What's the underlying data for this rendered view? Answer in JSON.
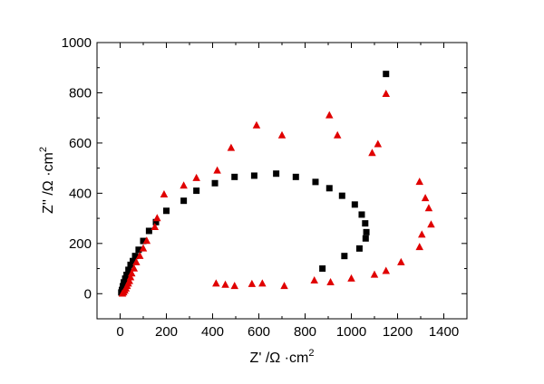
{
  "chart_data": {
    "type": "scatter",
    "title": "",
    "xlabel": {
      "main": "Z' /Ω ·cm",
      "sup": "2"
    },
    "ylabel": {
      "main": "Z'' /Ω ·cm",
      "sup": "2"
    },
    "xlim": [
      -100,
      1500
    ],
    "ylim": [
      -100,
      1000
    ],
    "xticks": [
      0,
      200,
      400,
      600,
      800,
      1000,
      1200,
      1400
    ],
    "yticks": [
      0,
      200,
      400,
      600,
      800,
      1000
    ],
    "grid": false,
    "legend": "none",
    "series": [
      {
        "marker": "square",
        "color": "#000000",
        "points": [
          [
            5,
            5
          ],
          [
            8,
            15
          ],
          [
            12,
            30
          ],
          [
            16,
            45
          ],
          [
            22,
            60
          ],
          [
            28,
            75
          ],
          [
            36,
            95
          ],
          [
            45,
            115
          ],
          [
            55,
            130
          ],
          [
            65,
            150
          ],
          [
            80,
            175
          ],
          [
            100,
            210
          ],
          [
            125,
            250
          ],
          [
            155,
            285
          ],
          [
            200,
            330
          ],
          [
            275,
            370
          ],
          [
            330,
            410
          ],
          [
            410,
            440
          ],
          [
            495,
            465
          ],
          [
            580,
            470
          ],
          [
            675,
            478
          ],
          [
            760,
            465
          ],
          [
            845,
            445
          ],
          [
            905,
            420
          ],
          [
            960,
            390
          ],
          [
            1015,
            355
          ],
          [
            1045,
            315
          ],
          [
            1060,
            280
          ],
          [
            1065,
            245
          ],
          [
            1062,
            220
          ],
          [
            1035,
            180
          ],
          [
            970,
            150
          ],
          [
            875,
            100
          ],
          [
            1150,
            875
          ]
        ]
      },
      {
        "marker": "triangle",
        "color": "#e00000",
        "points": [
          [
            10,
            0
          ],
          [
            15,
            5
          ],
          [
            20,
            12
          ],
          [
            25,
            20
          ],
          [
            30,
            30
          ],
          [
            35,
            40
          ],
          [
            40,
            50
          ],
          [
            45,
            65
          ],
          [
            50,
            80
          ],
          [
            60,
            100
          ],
          [
            70,
            125
          ],
          [
            85,
            150
          ],
          [
            100,
            180
          ],
          [
            115,
            210
          ],
          [
            150,
            265
          ],
          [
            160,
            300
          ],
          [
            190,
            395
          ],
          [
            275,
            430
          ],
          [
            330,
            460
          ],
          [
            420,
            490
          ],
          [
            480,
            580
          ],
          [
            590,
            670
          ],
          [
            700,
            630
          ],
          [
            905,
            710
          ],
          [
            940,
            630
          ],
          [
            1090,
            560
          ],
          [
            1115,
            595
          ],
          [
            1150,
            795
          ],
          [
            415,
            40
          ],
          [
            455,
            35
          ],
          [
            495,
            30
          ],
          [
            570,
            38
          ],
          [
            615,
            40
          ],
          [
            710,
            30
          ],
          [
            840,
            52
          ],
          [
            910,
            45
          ],
          [
            1000,
            60
          ],
          [
            1100,
            75
          ],
          [
            1150,
            90
          ],
          [
            1215,
            125
          ],
          [
            1295,
            185
          ],
          [
            1305,
            235
          ],
          [
            1345,
            275
          ],
          [
            1335,
            340
          ],
          [
            1320,
            380
          ],
          [
            1295,
            445
          ]
        ]
      }
    ]
  }
}
